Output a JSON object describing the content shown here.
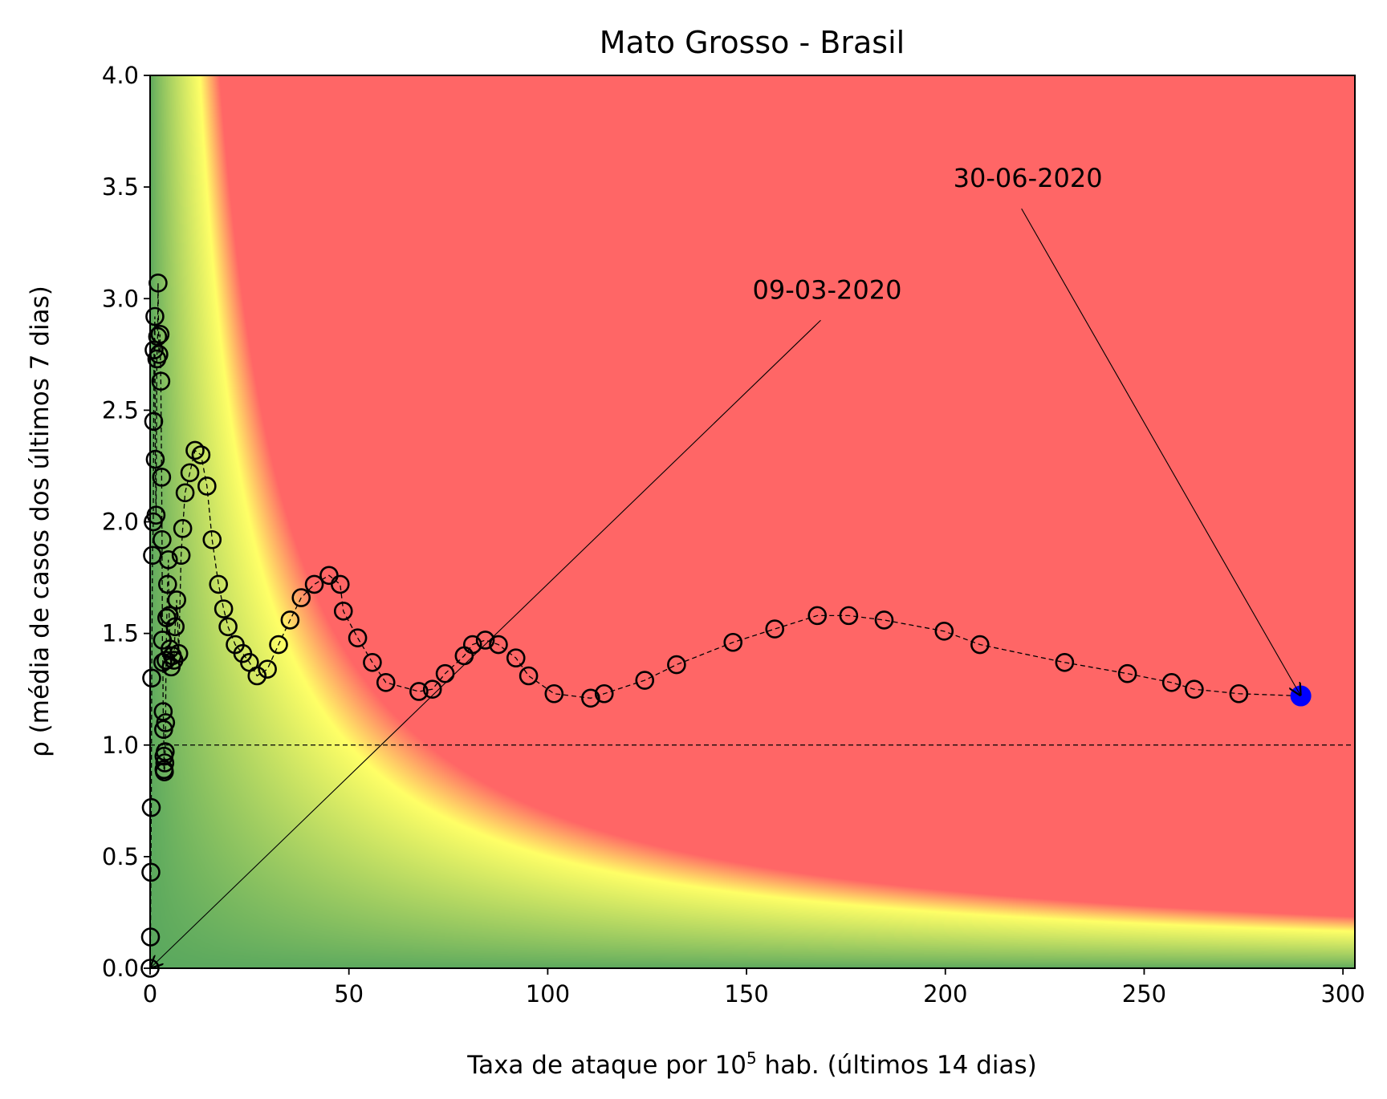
{
  "chart_data": {
    "type": "scatter",
    "title": "Mato Grosso - Brasil",
    "xlabel": {
      "prefix": "Taxa de ataque por 10",
      "superscript": "5",
      "suffix": " hab. (últimos 14 dias)"
    },
    "ylabel": "ρ (média de casos dos últimos 7 dias)",
    "xlim": [
      0,
      303
    ],
    "ylim": [
      0,
      4.0
    ],
    "xticks": [
      0,
      50,
      100,
      150,
      200,
      250,
      300
    ],
    "xtick_labels": [
      "0",
      "50",
      "100",
      "150",
      "200",
      "250",
      "300"
    ],
    "yticks": [
      0.0,
      0.5,
      1.0,
      1.5,
      2.0,
      2.5,
      3.0,
      3.5,
      4.0
    ],
    "ytick_labels": [
      "0.0",
      "0.5",
      "1.0",
      "1.5",
      "2.0",
      "2.5",
      "3.0",
      "3.5",
      "4.0"
    ],
    "reference_line": {
      "y": 1.0,
      "style": "dashed"
    },
    "background": {
      "type": "risk-heatmap",
      "description_value": "x*y",
      "colors": {
        "low": "#5aa85e",
        "mid": "#ffff66",
        "high": "#ff6666"
      },
      "thresholds": {
        "mid": 50,
        "high": 70
      }
    },
    "series": [
      {
        "name": "trajectory",
        "marker": "open-circle",
        "line": "dashed",
        "color": "#000000",
        "points": [
          [
            0.0,
            0.0
          ],
          [
            0.1,
            0.14
          ],
          [
            0.2,
            0.43
          ],
          [
            0.3,
            0.72
          ],
          [
            0.4,
            1.3
          ],
          [
            0.6,
            1.85
          ],
          [
            0.8,
            2.0
          ],
          [
            0.9,
            2.45
          ],
          [
            1.0,
            2.77
          ],
          [
            1.2,
            2.92
          ],
          [
            1.3,
            2.28
          ],
          [
            1.5,
            2.03
          ],
          [
            1.7,
            2.73
          ],
          [
            1.9,
            2.83
          ],
          [
            2.0,
            3.07
          ],
          [
            2.2,
            2.75
          ],
          [
            2.5,
            2.84
          ],
          [
            2.7,
            2.63
          ],
          [
            2.9,
            2.2
          ],
          [
            3.0,
            1.92
          ],
          [
            3.1,
            1.47
          ],
          [
            3.2,
            1.37
          ],
          [
            3.3,
            1.15
          ],
          [
            3.4,
            1.07
          ],
          [
            3.5,
            0.95
          ],
          [
            3.5,
            0.89
          ],
          [
            3.6,
            0.88
          ],
          [
            3.7,
            0.92
          ],
          [
            3.8,
            0.97
          ],
          [
            3.9,
            1.1
          ],
          [
            4.0,
            1.38
          ],
          [
            4.2,
            1.57
          ],
          [
            4.4,
            1.72
          ],
          [
            4.6,
            1.83
          ],
          [
            4.8,
            1.58
          ],
          [
            5.0,
            1.43
          ],
          [
            5.3,
            1.35
          ],
          [
            5.6,
            1.4
          ],
          [
            6.0,
            1.38
          ],
          [
            6.3,
            1.53
          ],
          [
            6.7,
            1.65
          ],
          [
            7.2,
            1.41
          ],
          [
            7.8,
            1.85
          ],
          [
            8.2,
            1.97
          ],
          [
            8.8,
            2.13
          ],
          [
            10.0,
            2.22
          ],
          [
            11.3,
            2.32
          ],
          [
            12.8,
            2.3
          ],
          [
            14.3,
            2.16
          ],
          [
            15.6,
            1.92
          ],
          [
            17.2,
            1.72
          ],
          [
            18.5,
            1.61
          ],
          [
            19.6,
            1.53
          ],
          [
            21.4,
            1.45
          ],
          [
            23.3,
            1.41
          ],
          [
            25.0,
            1.37
          ],
          [
            26.9,
            1.31
          ],
          [
            29.5,
            1.34
          ],
          [
            32.3,
            1.45
          ],
          [
            35.2,
            1.56
          ],
          [
            38.0,
            1.66
          ],
          [
            41.3,
            1.72
          ],
          [
            45.0,
            1.76
          ],
          [
            47.8,
            1.72
          ],
          [
            48.6,
            1.6
          ],
          [
            52.2,
            1.48
          ],
          [
            55.9,
            1.37
          ],
          [
            59.3,
            1.28
          ],
          [
            67.6,
            1.24
          ],
          [
            71.0,
            1.25
          ],
          [
            74.2,
            1.32
          ],
          [
            79.0,
            1.4
          ],
          [
            81.1,
            1.45
          ],
          [
            84.3,
            1.47
          ],
          [
            87.6,
            1.45
          ],
          [
            92.0,
            1.39
          ],
          [
            95.2,
            1.31
          ],
          [
            101.6,
            1.23
          ],
          [
            110.8,
            1.21
          ],
          [
            114.2,
            1.23
          ],
          [
            124.4,
            1.29
          ],
          [
            132.4,
            1.36
          ],
          [
            146.6,
            1.46
          ],
          [
            157.1,
            1.52
          ],
          [
            167.8,
            1.58
          ],
          [
            175.7,
            1.58
          ],
          [
            184.6,
            1.56
          ],
          [
            199.7,
            1.51
          ],
          [
            208.7,
            1.45
          ],
          [
            230.0,
            1.37
          ],
          [
            245.8,
            1.32
          ],
          [
            256.9,
            1.28
          ],
          [
            262.6,
            1.25
          ],
          [
            273.8,
            1.23
          ]
        ]
      },
      {
        "name": "latest",
        "marker": "filled-circle",
        "color": "#0000ff",
        "points": [
          [
            289.4,
            1.22
          ]
        ]
      }
    ],
    "annotations": [
      {
        "text": "09-03-2020",
        "xy": [
          0.0,
          0.0
        ],
        "xytext": [
          151.5,
          3.0
        ]
      },
      {
        "text": "30-06-2020",
        "xy": [
          289.4,
          1.22
        ],
        "xytext": [
          202.0,
          3.5
        ]
      }
    ]
  }
}
